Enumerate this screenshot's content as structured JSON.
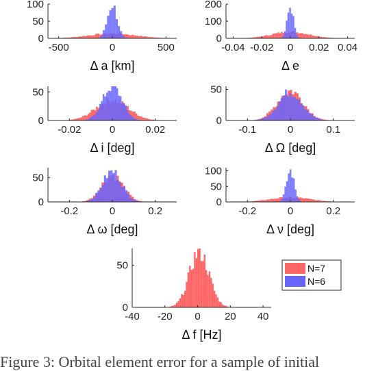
{
  "caption": "Figure 3: Orbital element error for a sample of initial",
  "colors": {
    "n7": "#ff6666",
    "n6": "#6666ff",
    "overlap": "#7f33cc",
    "axis": "#262626"
  },
  "legend": {
    "entries": [
      "N=7",
      "N=6"
    ]
  },
  "chart_data": [
    {
      "type": "histogram",
      "xlabel": "Δ a [km]",
      "xlim": [
        -600,
        600
      ],
      "ylim": [
        0,
        100
      ],
      "xticks": [
        -500,
        0,
        500
      ],
      "xtick_labels": [
        "-500",
        "0",
        "500"
      ],
      "yticks": [
        0,
        50,
        100
      ],
      "ytick_labels": [
        "0",
        "50",
        "100"
      ],
      "bin_width": 20,
      "series": [
        {
          "name": "N=7",
          "color": "#ff6666",
          "dist": "normal",
          "mean": 0,
          "std": 220,
          "peak": 14
        },
        {
          "name": "N=6",
          "color": "#6666ff",
          "dist": "normal",
          "mean": 0,
          "std": 45,
          "peak": 98
        }
      ]
    },
    {
      "type": "histogram",
      "xlabel": "Δ e",
      "xlim": [
        -0.045,
        0.045
      ],
      "ylim": [
        0,
        200
      ],
      "xticks": [
        -0.04,
        -0.02,
        0,
        0.02,
        0.04
      ],
      "xtick_labels": [
        "-0.04",
        "-0.02",
        "0",
        "0.02",
        "0.04"
      ],
      "yticks": [
        0,
        100,
        200
      ],
      "ytick_labels": [
        "0",
        "100",
        "200"
      ],
      "bin_width": 0.0012,
      "series": [
        {
          "name": "N=7",
          "color": "#ff6666",
          "dist": "normal",
          "mean": 0,
          "std": 0.013,
          "peak": 38
        },
        {
          "name": "N=6",
          "color": "#6666ff",
          "dist": "normal",
          "mean": 0,
          "std": 0.0022,
          "peak": 185
        }
      ]
    },
    {
      "type": "histogram",
      "xlabel": "Δ i [deg]",
      "xlim": [
        -0.03,
        0.03
      ],
      "ylim": [
        0,
        60
      ],
      "xticks": [
        -0.02,
        0,
        0.02
      ],
      "xtick_labels": [
        "-0.02",
        "0",
        "0.02"
      ],
      "yticks": [
        0,
        50
      ],
      "ytick_labels": [
        "0",
        "50"
      ],
      "bin_width": 0.0008,
      "series": [
        {
          "name": "N=7",
          "color": "#ff6666",
          "dist": "normal",
          "mean": 0,
          "std": 0.0075,
          "peak": 36
        },
        {
          "name": "N=6",
          "color": "#6666ff",
          "dist": "normal",
          "mean": 0,
          "std": 0.0045,
          "peak": 60
        }
      ]
    },
    {
      "type": "histogram",
      "xlabel": "Δ Ω [deg]",
      "xlim": [
        -0.15,
        0.15
      ],
      "ylim": [
        0,
        55
      ],
      "xticks": [
        -0.1,
        0,
        0.1
      ],
      "xtick_labels": [
        "-0.1",
        "0",
        "0.1"
      ],
      "yticks": [
        0,
        50
      ],
      "ytick_labels": [
        "0",
        "50"
      ],
      "bin_width": 0.005,
      "series": [
        {
          "name": "N=7",
          "color": "#ff6666",
          "dist": "normal",
          "mean": 0,
          "std": 0.03,
          "peak": 48
        },
        {
          "name": "N=6",
          "color": "#6666ff",
          "dist": "normal",
          "mean": 0,
          "std": 0.028,
          "peak": 46
        }
      ]
    },
    {
      "type": "histogram",
      "xlabel": "Δ ω [deg]",
      "xlim": [
        -0.3,
        0.3
      ],
      "ylim": [
        0,
        70
      ],
      "xticks": [
        -0.2,
        0,
        0.2
      ],
      "xtick_labels": [
        "-0.2",
        "0",
        "0.2"
      ],
      "yticks": [
        0,
        50
      ],
      "ytick_labels": [
        "0",
        "50"
      ],
      "bin_width": 0.01,
      "series": [
        {
          "name": "N=7",
          "color": "#ff6666",
          "dist": "normal",
          "mean": 0,
          "std": 0.05,
          "peak": 55
        },
        {
          "name": "N=6",
          "color": "#6666ff",
          "dist": "normal",
          "mean": 0,
          "std": 0.045,
          "peak": 62
        }
      ]
    },
    {
      "type": "histogram",
      "xlabel": "Δ ν [deg]",
      "xlim": [
        -0.3,
        0.3
      ],
      "ylim": [
        0,
        110
      ],
      "xticks": [
        -0.2,
        0,
        0.2
      ],
      "xtick_labels": [
        "-0.2",
        "0",
        "0.2"
      ],
      "yticks": [
        0,
        50,
        100
      ],
      "ytick_labels": [
        "0",
        "50",
        "100"
      ],
      "bin_width": 0.008,
      "series": [
        {
          "name": "N=7",
          "color": "#ff6666",
          "dist": "normal",
          "mean": 0,
          "std": 0.09,
          "peak": 15
        },
        {
          "name": "N=6",
          "color": "#6666ff",
          "dist": "normal",
          "mean": 0,
          "std": 0.018,
          "peak": 100
        }
      ]
    },
    {
      "type": "histogram",
      "xlabel": "Δ f [Hz]",
      "xlim": [
        -40,
        45
      ],
      "ylim": [
        0,
        70
      ],
      "xticks": [
        -40,
        -20,
        0,
        20,
        40
      ],
      "xtick_labels": [
        "-40",
        "-20",
        "0",
        "20",
        "40"
      ],
      "yticks": [
        0,
        50
      ],
      "ytick_labels": [
        "0",
        "50"
      ],
      "bin_width": 1,
      "legend": true,
      "series": [
        {
          "name": "N=7",
          "color": "#ff6666",
          "dist": "normal",
          "mean": 1,
          "std": 6,
          "peak": 66
        }
      ]
    }
  ]
}
